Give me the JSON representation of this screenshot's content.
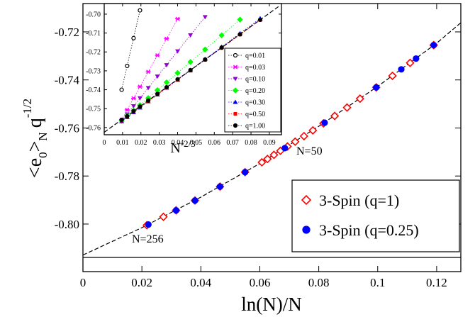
{
  "chart_data": [
    {
      "type": "scatter",
      "xlabel": "ln(N)/N",
      "ylabel": [
        "<e",
        "0",
        ">",
        "N",
        "q",
        "-1/2"
      ],
      "xlim": [
        0,
        0.1282
      ],
      "ylim": [
        -0.8198,
        -0.7082
      ],
      "xticks": [
        0,
        0.02,
        0.04,
        0.06,
        0.08,
        0.1,
        0.12
      ],
      "yticks": [
        {
          "value": -0.8,
          "label": "-0.80"
        },
        -0.78,
        -0.76,
        -0.74,
        -0.72
      ],
      "hline": -0.8139,
      "legend": "lower right",
      "annotations": [
        "N=50",
        "N=256"
      ],
      "fit": {
        "x": [
          0,
          0.02,
          0.04,
          0.06,
          0.08,
          0.1,
          0.12,
          0.1282
        ],
        "values": [
          -0.8129,
          -0.8015,
          -0.7888,
          -0.7748,
          -0.7593,
          -0.7427,
          -0.7247,
          -0.7162
        ]
      },
      "series": [
        {
          "name": "3-Spin (q=1)",
          "color": "#ff0000",
          "marker": "diamond-open",
          "x": [
            0.0217,
            0.0273,
            0.0316,
            0.038,
            0.0465,
            0.055,
            0.0607,
            0.0626,
            0.0648,
            0.067,
            0.0694,
            0.072,
            0.075,
            0.078,
            0.0816,
            0.0854,
            0.0896,
            0.094,
            0.0995,
            0.105,
            0.111,
            0.119
          ],
          "values": [
            -0.8005,
            -0.797,
            -0.7943,
            -0.7902,
            -0.7844,
            -0.7784,
            -0.7743,
            -0.7729,
            -0.7712,
            -0.7695,
            -0.7677,
            -0.7657,
            -0.7634,
            -0.761,
            -0.7581,
            -0.755,
            -0.7515,
            -0.7478,
            -0.7431,
            -0.7383,
            -0.7329,
            -0.7255
          ]
        },
        {
          "name": "3-Spin (q=0.25)",
          "color": "#0000ff",
          "marker": "circle",
          "x": [
            0.0222,
            0.0316,
            0.038,
            0.0465,
            0.055,
            0.0685,
            0.082,
            0.0995,
            0.108,
            0.113,
            0.119
          ],
          "values": [
            -0.8002,
            -0.7943,
            -0.7902,
            -0.7844,
            -0.7784,
            -0.7684,
            -0.7578,
            -0.7431,
            -0.7356,
            -0.7311,
            -0.7255
          ]
        }
      ]
    },
    {
      "type": "line",
      "xlabel": [
        "N",
        "-2/3"
      ],
      "xlim": [
        0,
        0.0966
      ],
      "ylim": [
        -0.7638,
        -0.6944
      ],
      "xticks": [
        0,
        0.01,
        0.02,
        0.03,
        0.04,
        0.05,
        0.06,
        0.07,
        0.08,
        0.09
      ],
      "yticks": [
        -0.76,
        -0.75,
        -0.74,
        -0.73,
        -0.72,
        -0.71,
        {
          "value": -0.7,
          "label": "-0.70"
        }
      ],
      "legend": "lower right",
      "fit": {
        "x": [
          0,
          0.095
        ],
        "values": [
          -0.7625,
          -0.696
        ]
      },
      "series": [
        {
          "name": "q=0.01",
          "color": "#000000",
          "marker": "circle-open",
          "x": [
            0.0095,
            0.0125,
            0.016,
            0.0195
          ],
          "values": [
            -0.74,
            -0.7274,
            -0.7127,
            -0.698
          ]
        },
        {
          "name": "q=0.03",
          "color": "#ff00ff",
          "marker": "star",
          "x": [
            0.0095,
            0.0125,
            0.016,
            0.0195,
            0.024,
            0.029,
            0.034,
            0.04
          ],
          "values": [
            -0.7559,
            -0.7506,
            -0.7445,
            -0.7384,
            -0.7305,
            -0.7218,
            -0.713,
            -0.7025
          ]
        },
        {
          "name": "q=0.10",
          "color": "#9400d3",
          "marker": "triangle-down",
          "x": [
            0.0095,
            0.0125,
            0.016,
            0.0195,
            0.024,
            0.029,
            0.034,
            0.04,
            0.047,
            0.055
          ],
          "values": [
            -0.7565,
            -0.7529,
            -0.7486,
            -0.7444,
            -0.739,
            -0.7329,
            -0.7269,
            -0.7196,
            -0.7111,
            -0.7015
          ]
        },
        {
          "name": "q=0.20",
          "color": "#00ff00",
          "marker": "diamond",
          "x": [
            0.0095,
            0.0125,
            0.016,
            0.0195,
            0.024,
            0.029,
            0.034,
            0.04,
            0.047,
            0.055,
            0.064,
            0.074
          ],
          "values": [
            -0.7564,
            -0.7539,
            -0.751,
            -0.7481,
            -0.7444,
            -0.7402,
            -0.7361,
            -0.7311,
            -0.7253,
            -0.7187,
            -0.7112,
            -0.7029
          ]
        },
        {
          "name": "q=0.30",
          "color": "#0000ff",
          "marker": "triangle-up",
          "x": [
            0.0095,
            0.0125,
            0.016,
            0.0195,
            0.024,
            0.029,
            0.034,
            0.04,
            0.047,
            0.055,
            0.064,
            0.074,
            0.085
          ],
          "values": [
            -0.7567,
            -0.7545,
            -0.752,
            -0.7495,
            -0.7462,
            -0.7426,
            -0.739,
            -0.7347,
            -0.7297,
            -0.7239,
            -0.7174,
            -0.7102,
            -0.7023
          ]
        },
        {
          "name": "q=0.50",
          "color": "#ff0000",
          "marker": "square",
          "x": [
            0.0095,
            0.0125,
            0.016,
            0.0195,
            0.024,
            0.029,
            0.034,
            0.04,
            0.047,
            0.055,
            0.064,
            0.074,
            0.085
          ],
          "values": [
            -0.7563,
            -0.7542,
            -0.7517,
            -0.7493,
            -0.7461,
            -0.7426,
            -0.739,
            -0.7348,
            -0.7299,
            -0.7242,
            -0.7179,
            -0.7108,
            -0.7031
          ]
        },
        {
          "name": "q=1.00",
          "color": "#000000",
          "marker": "circle",
          "x": [
            0.0095,
            0.0125,
            0.016,
            0.0195,
            0.024,
            0.029,
            0.034,
            0.04,
            0.047,
            0.055,
            0.064,
            0.074,
            0.085
          ],
          "values": [
            -0.7559,
            -0.754,
            -0.7513,
            -0.7489,
            -0.7457,
            -0.7422,
            -0.7387,
            -0.7345,
            -0.7296,
            -0.724,
            -0.7177,
            -0.7107,
            -0.703
          ]
        }
      ]
    }
  ]
}
